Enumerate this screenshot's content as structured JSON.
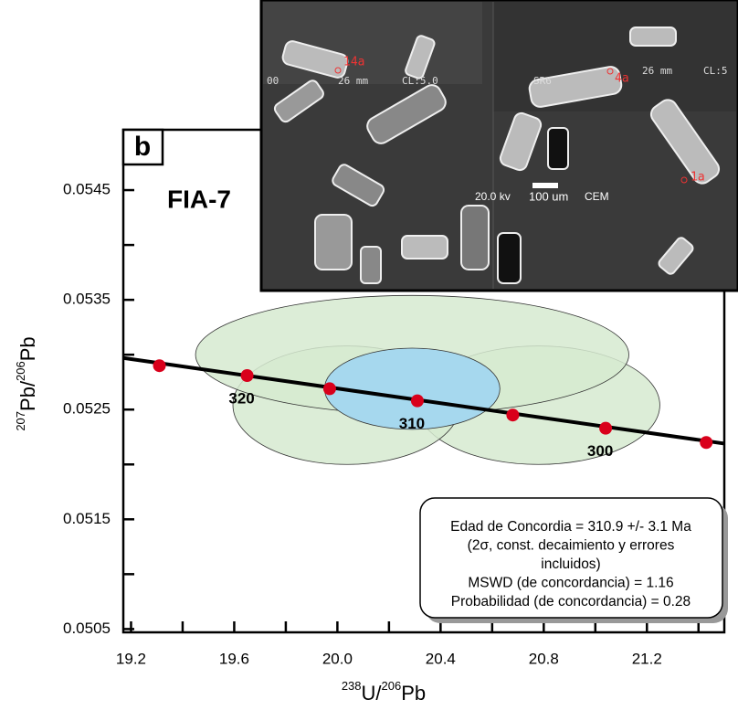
{
  "chart_data": {
    "type": "concordia",
    "panel_label": "b",
    "sample": "FIA-7",
    "x_label": {
      "sup1": "238",
      "base1": "U/",
      "sup2": "206",
      "base2": "Pb"
    },
    "y_label": {
      "sup1": "207",
      "base1": "Pb/",
      "sup2": "206",
      "base2": "Pb"
    },
    "xlim": [
      19.17,
      21.5
    ],
    "ylim": [
      0.05047,
      0.05505
    ],
    "xticks": [
      19.2,
      19.6,
      {
        "value": 20.0,
        "label": "20.0"
      },
      20.4,
      20.8,
      21.2
    ],
    "xminorticks": [
      19.4,
      19.8,
      20.2,
      20.6,
      21.0,
      21.4
    ],
    "yticks": [
      0.0505,
      0.0515,
      0.0525,
      0.0535,
      0.0545
    ],
    "yminorticks": [
      0.051,
      0.052,
      0.053,
      0.054
    ],
    "concordia": {
      "x": [
        19.17,
        21.5
      ],
      "y": [
        0.05297,
        0.05219
      ],
      "color": "#000000"
    },
    "age_points": {
      "x": [
        19.31,
        19.65,
        19.97,
        20.31,
        20.68,
        21.04,
        21.43
      ],
      "y": [
        0.0529,
        0.05281,
        0.05269,
        0.05258,
        0.05245,
        0.05233,
        0.0522
      ],
      "labels": [
        null,
        "320",
        null,
        "310",
        null,
        "300",
        null
      ],
      "color": "#d9001b"
    },
    "ellipses": [
      {
        "x": 20.78,
        "y": 0.05254,
        "rx": 0.47,
        "ry": 0.00054,
        "color": "#d6ead0"
      },
      {
        "x": 20.035,
        "y": 0.05254,
        "rx": 0.44,
        "ry": 0.00054,
        "color": "#d6ead0"
      },
      {
        "x": 20.29,
        "y": 0.053,
        "rx": 0.84,
        "ry": 0.00054,
        "color": "#d6ead0"
      },
      {
        "x": 20.29,
        "y": 0.05269,
        "rx": 0.34,
        "ry": 0.00037,
        "color": "#a6d8ee"
      }
    ],
    "result_box": [
      "Edad de Concordia = 310.9 +/- 3.1 Ma",
      "(2σ, const. decaimiento y errores",
      "incluidos)",
      "MSWD (de concordancia) = 1.16",
      "Probabilidad (de concordancia) = 0.28"
    ],
    "inset": {
      "spot_labels": [
        "14a",
        "4a",
        "1a"
      ],
      "texts": [
        "00",
        "26 mm",
        "CL:5.0",
        "SR6",
        "26 mm",
        "CL:5",
        "20.0 kv",
        "100 um",
        "CEM"
      ]
    }
  }
}
